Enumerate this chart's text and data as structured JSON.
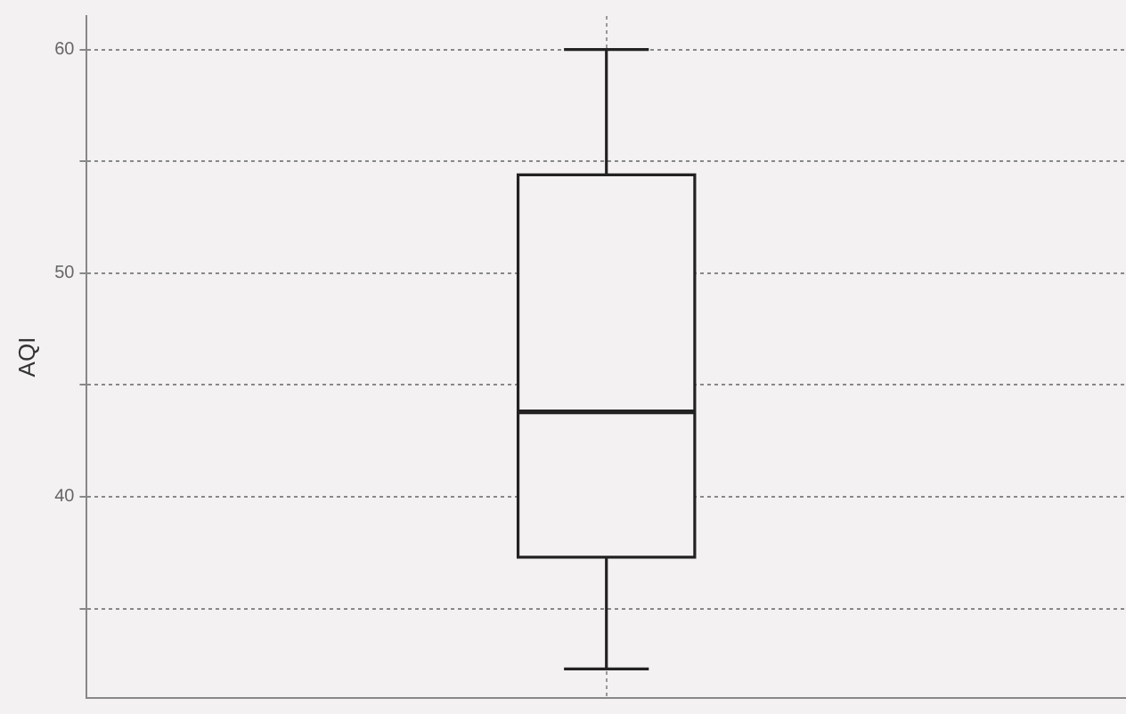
{
  "chart_data": {
    "type": "box",
    "ylabel": "AQI",
    "categories": [
      null
    ],
    "boxes": [
      {
        "low": 32.3,
        "q1": 37.3,
        "median": 43.8,
        "q3": 54.4,
        "high": 60
      }
    ],
    "ylim": [
      31,
      61.5
    ],
    "yticks": [
      {
        "value": 35,
        "label": null
      },
      40,
      {
        "value": 45,
        "label": null
      },
      50,
      {
        "value": 55,
        "label": null
      },
      60
    ],
    "grid": true
  }
}
